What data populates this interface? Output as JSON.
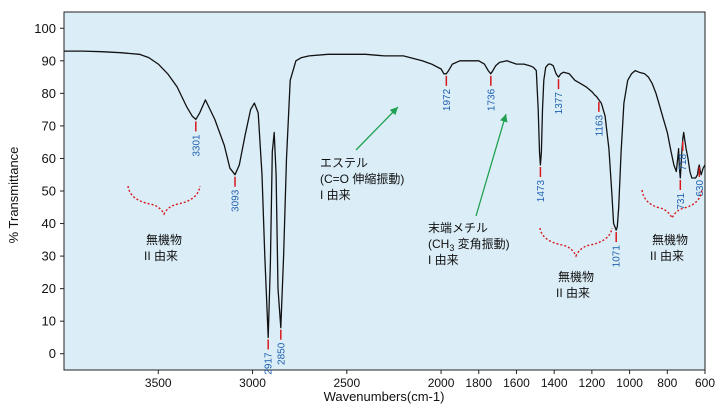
{
  "chart_data": {
    "type": "line",
    "title": "",
    "xlabel": "Wavenumbers(cm-1)",
    "ylabel": "% Transmittance",
    "xlim": [
      4000,
      600
    ],
    "ylim": [
      -5,
      105
    ],
    "x_reversed": true,
    "grid": false,
    "background_color": "#dbeef8",
    "line_color": "#111111",
    "marker_color": "#d7191c",
    "label_color": "#1f5fae",
    "arrow_color": "#20a050",
    "brace_color": "#d7191c",
    "x_ticks": [
      3500,
      3000,
      2500,
      2000,
      1800,
      1600,
      1400,
      1200,
      1000,
      800,
      600
    ],
    "y_ticks": [
      0,
      10,
      20,
      30,
      40,
      50,
      60,
      70,
      80,
      90,
      100
    ],
    "series": [
      {
        "x": [
          4000,
          3900,
          3800,
          3700,
          3600,
          3550,
          3500,
          3450,
          3400,
          3350,
          3320,
          3301,
          3280,
          3250,
          3200,
          3150,
          3120,
          3093,
          3070,
          3040,
          3010,
          2990,
          2970,
          2950,
          2935,
          2917,
          2905,
          2895,
          2885,
          2875,
          2865,
          2850,
          2835,
          2820,
          2800,
          2770,
          2740,
          2700,
          2600,
          2500,
          2400,
          2300,
          2200,
          2100,
          2050,
          2000,
          1985,
          1972,
          1960,
          1940,
          1900,
          1850,
          1800,
          1770,
          1750,
          1736,
          1725,
          1710,
          1690,
          1650,
          1600,
          1560,
          1530,
          1510,
          1495,
          1485,
          1478,
          1473,
          1468,
          1462,
          1455,
          1445,
          1430,
          1420,
          1405,
          1390,
          1377,
          1365,
          1350,
          1320,
          1290,
          1260,
          1230,
          1200,
          1185,
          1175,
          1163,
          1150,
          1130,
          1110,
          1095,
          1085,
          1078,
          1071,
          1065,
          1058,
          1045,
          1030,
          1010,
          990,
          970,
          950,
          920,
          900,
          880,
          860,
          840,
          820,
          800,
          780,
          765,
          752,
          745,
          740,
          736,
          731,
          727,
          723,
          718,
          713,
          708,
          700,
          690,
          680,
          670,
          660,
          650,
          640,
          635,
          630,
          625,
          620,
          610,
          600
        ],
        "y": [
          93,
          93,
          92.8,
          92.5,
          92,
          91,
          89,
          86,
          82,
          76,
          73,
          72,
          74,
          78,
          72,
          64,
          57,
          55,
          58,
          67,
          75,
          77,
          74,
          55,
          30,
          5,
          28,
          62,
          68,
          55,
          20,
          8,
          30,
          60,
          84,
          90,
          91,
          91.5,
          92,
          92,
          92,
          91.5,
          91.5,
          90,
          89,
          87.5,
          86,
          86,
          87,
          89,
          90,
          90,
          90,
          89,
          87,
          86,
          87,
          88.5,
          89.5,
          90,
          89,
          89,
          88.5,
          88,
          87,
          75,
          62,
          58,
          62,
          75,
          84,
          88,
          89,
          89,
          88.5,
          86,
          85,
          86,
          86.5,
          86,
          84,
          83,
          82,
          80.5,
          79.5,
          79,
          78,
          77,
          73,
          63,
          50,
          40,
          39,
          38,
          39,
          45,
          62,
          77,
          84,
          86,
          87,
          86.5,
          86,
          85,
          83,
          80,
          76,
          72,
          68,
          62,
          58,
          56,
          60,
          63,
          57,
          54,
          58,
          62,
          66,
          68,
          66,
          63,
          60,
          56,
          54,
          54,
          54,
          55,
          57,
          58,
          56,
          55,
          57,
          58
        ]
      }
    ],
    "peaks": [
      "3301",
      "3093",
      "2917",
      "2850",
      "1972",
      "1736",
      "1473",
      "1377",
      "1163",
      "1071",
      "731",
      "718",
      "630"
    ]
  },
  "annotations": {
    "ester_line1": "エステル",
    "ester_line2": "(C=O 伸縮振動)",
    "ester_line3": "I 由来",
    "methyl_line1": "末端メチル",
    "methyl_line2_pre": "(CH",
    "methyl_line2_sub": "3",
    "methyl_line2_post": " 変角振動)",
    "methyl_line3": "I 由来",
    "inorg_a_line1": "無機物",
    "inorg_a_line2": "II 由来",
    "inorg_b_line1": "無機物",
    "inorg_b_line2": "II 由来",
    "inorg_c_line1": "無機物",
    "inorg_c_line2": "II 由来"
  }
}
